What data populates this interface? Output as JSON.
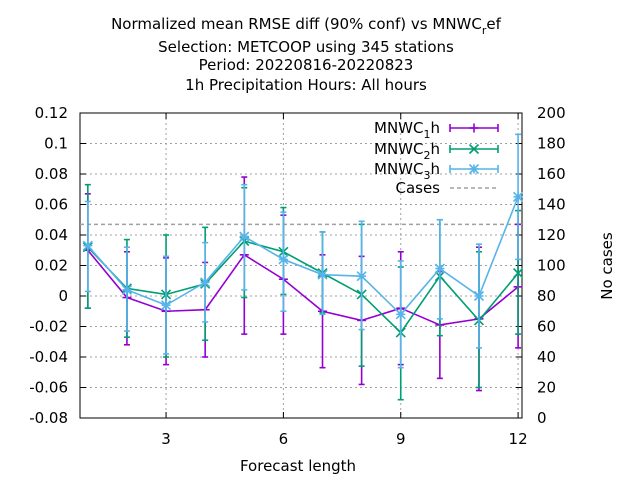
{
  "chart_data": {
    "type": "line",
    "title_lines": [
      "Normalized mean RMSE diff (90% conf) vs MNWC_ref",
      "Selection: METCOOP using   345 stations",
      "Period: 20220816-20220823",
      "1h Precipitation   Hours:  All hours"
    ],
    "xlabel": "Forecast length",
    "ylabel": "",
    "y2label": "No cases",
    "xlim": [
      0.8,
      12.1
    ],
    "ylim": [
      -0.08,
      0.12
    ],
    "y2lim": [
      0,
      200
    ],
    "xticks": [
      3,
      6,
      9,
      12
    ],
    "yticks": [
      -0.08,
      -0.06,
      -0.04,
      -0.02,
      0,
      0.02,
      0.04,
      0.06,
      0.08,
      0.1,
      0.12
    ],
    "y2ticks": [
      0,
      20,
      40,
      60,
      80,
      100,
      120,
      140,
      160,
      180,
      200
    ],
    "grid": true,
    "legend_position": "top-right",
    "series": [
      {
        "name": "MNWC_1h",
        "color": "#9400d3",
        "marker": "plus",
        "x": [
          1,
          2,
          3,
          4,
          5,
          6,
          7,
          8,
          9,
          10,
          11,
          12
        ],
        "y": [
          0.03,
          -0.001,
          -0.01,
          -0.009,
          0.027,
          0.011,
          -0.01,
          -0.016,
          -0.008,
          -0.019,
          -0.015,
          0.006
        ],
        "err_low": [
          -0.008,
          -0.032,
          -0.045,
          -0.04,
          -0.025,
          -0.025,
          -0.047,
          -0.058,
          -0.045,
          -0.054,
          -0.062,
          -0.034
        ],
        "err_high": [
          0.067,
          0.029,
          0.025,
          0.022,
          0.078,
          0.053,
          0.027,
          0.026,
          0.029,
          0.016,
          0.032,
          0.047
        ]
      },
      {
        "name": "MNWC_2h",
        "color": "#009e73",
        "marker": "cross",
        "x": [
          1,
          2,
          3,
          4,
          5,
          6,
          7,
          8,
          9,
          10,
          11,
          12
        ],
        "y": [
          0.032,
          0.005,
          0.001,
          0.008,
          0.036,
          0.029,
          0.015,
          0.001,
          -0.024,
          0.013,
          -0.016,
          0.015
        ],
        "err_low": [
          -0.008,
          -0.027,
          -0.04,
          -0.029,
          -0.001,
          0.001,
          -0.011,
          -0.046,
          -0.068,
          -0.026,
          -0.06,
          -0.025
        ],
        "err_high": [
          0.073,
          0.037,
          0.04,
          0.045,
          0.071,
          0.058,
          0.042,
          0.047,
          0.019,
          0.05,
          0.029,
          0.056
        ]
      },
      {
        "name": "MNWC_3h",
        "color": "#56b4e9",
        "marker": "star",
        "x": [
          1,
          2,
          3,
          4,
          5,
          6,
          7,
          8,
          9,
          10,
          11,
          12
        ],
        "y": [
          0.033,
          0.004,
          -0.006,
          0.009,
          0.039,
          0.024,
          0.014,
          0.013,
          -0.012,
          0.018,
          0.0,
          0.065
        ],
        "err_low": [
          0.003,
          -0.023,
          -0.038,
          -0.017,
          0.004,
          -0.01,
          -0.012,
          -0.022,
          -0.047,
          -0.015,
          -0.034,
          0.024
        ],
        "err_high": [
          0.062,
          0.032,
          0.026,
          0.035,
          0.073,
          0.055,
          0.042,
          0.049,
          0.023,
          0.05,
          0.034,
          0.106
        ]
      }
    ],
    "cases": {
      "name": "Cases",
      "color": "#a0a0a0",
      "value": 127
    }
  }
}
